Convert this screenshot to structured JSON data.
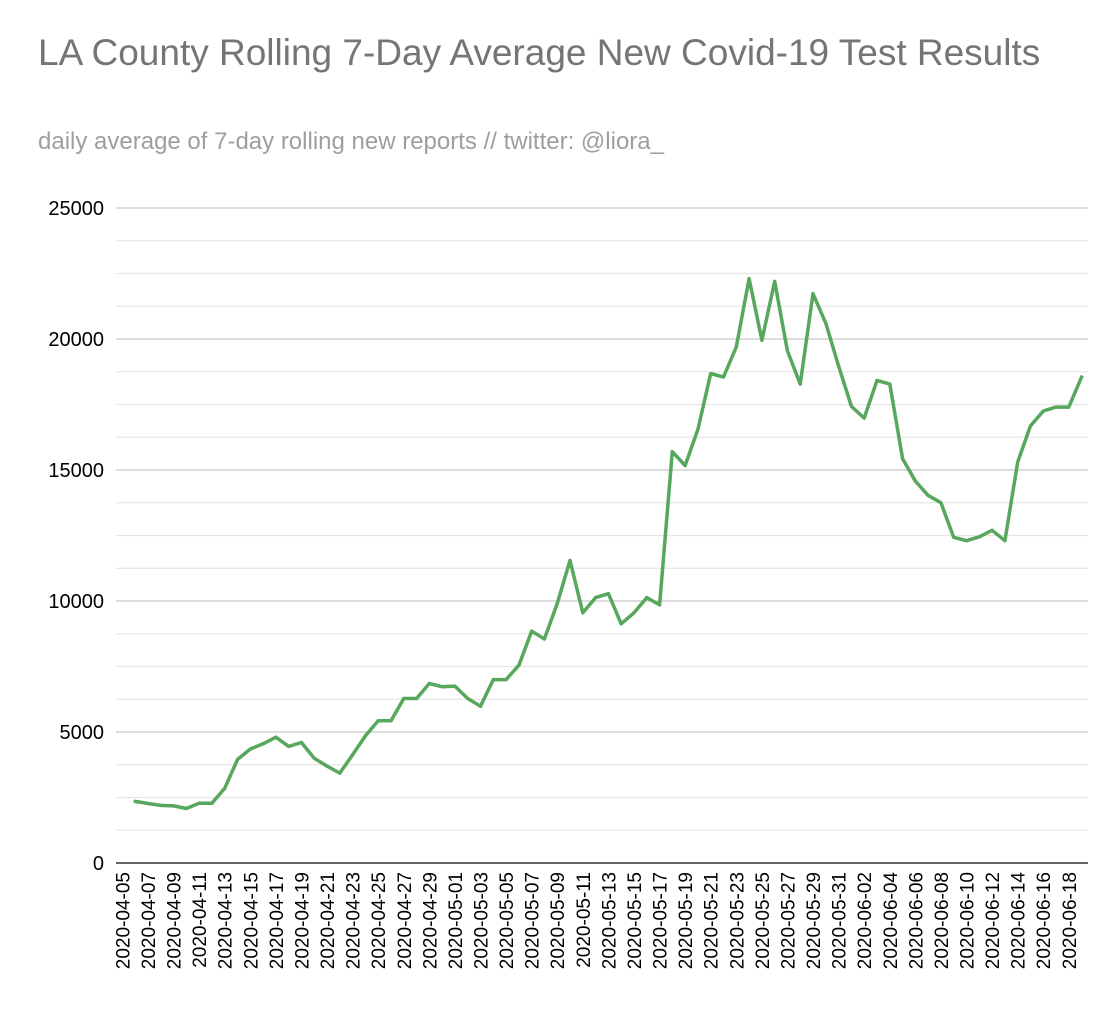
{
  "chart_data": {
    "type": "line",
    "title": "LA County Rolling 7-Day Average New Covid-19 Test Results",
    "subtitle": "daily average of 7-day rolling new reports // twitter: @liora_",
    "xlabel": "",
    "ylabel": "",
    "ylim": [
      0,
      25000
    ],
    "y_ticks": [
      "0",
      "5000",
      "10000",
      "15000",
      "20000",
      "25000"
    ],
    "y_minor_step": 1250,
    "grid": true,
    "legend": "none",
    "line_color": "#57a75c",
    "x_tick_labels": [
      "2020-04-05",
      "2020-04-07",
      "2020-04-09",
      "2020-04-11",
      "2020-04-13",
      "2020-04-15",
      "2020-04-17",
      "2020-04-19",
      "2020-04-21",
      "2020-04-23",
      "2020-04-25",
      "2020-04-27",
      "2020-04-29",
      "2020-05-01",
      "2020-05-03",
      "2020-05-05",
      "2020-05-07",
      "2020-05-09",
      "2020-05-11",
      "2020-05-13",
      "2020-05-15",
      "2020-05-17",
      "2020-05-19",
      "2020-05-21",
      "2020-05-23",
      "2020-05-25",
      "2020-05-27",
      "2020-05-29",
      "2020-05-31",
      "2020-06-02",
      "2020-06-04",
      "2020-06-06",
      "2020-06-08",
      "2020-06-10",
      "2020-06-12",
      "2020-06-14",
      "2020-06-16",
      "2020-06-18"
    ],
    "series": [
      {
        "x": [
          "2020-04-06",
          "2020-04-07",
          "2020-04-08",
          "2020-04-09",
          "2020-04-10",
          "2020-04-11",
          "2020-04-12",
          "2020-04-13",
          "2020-04-14",
          "2020-04-15",
          "2020-04-16",
          "2020-04-17",
          "2020-04-18",
          "2020-04-19",
          "2020-04-20",
          "2020-04-21",
          "2020-04-22",
          "2020-04-23",
          "2020-04-24",
          "2020-04-25",
          "2020-04-26",
          "2020-04-27",
          "2020-04-28",
          "2020-04-29",
          "2020-04-30",
          "2020-05-01",
          "2020-05-02",
          "2020-05-03",
          "2020-05-04",
          "2020-05-05",
          "2020-05-06",
          "2020-05-07",
          "2020-05-08",
          "2020-05-09",
          "2020-05-10",
          "2020-05-11",
          "2020-05-12",
          "2020-05-13",
          "2020-05-14",
          "2020-05-15",
          "2020-05-16",
          "2020-05-17",
          "2020-05-18",
          "2020-05-19",
          "2020-05-20",
          "2020-05-21",
          "2020-05-22",
          "2020-05-23",
          "2020-05-24",
          "2020-05-25",
          "2020-05-26",
          "2020-05-27",
          "2020-05-28",
          "2020-05-29",
          "2020-05-30",
          "2020-05-31",
          "2020-06-01",
          "2020-06-02",
          "2020-06-03",
          "2020-06-04",
          "2020-06-05",
          "2020-06-06",
          "2020-06-07",
          "2020-06-08",
          "2020-06-09",
          "2020-06-10",
          "2020-06-11",
          "2020-06-12",
          "2020-06-13",
          "2020-06-14",
          "2020-06-15",
          "2020-06-16",
          "2020-06-17",
          "2020-06-18",
          "2020-06-19"
        ],
        "values": [
          2350,
          2270,
          2200,
          2180,
          2080,
          2280,
          2280,
          2850,
          3950,
          4350,
          4550,
          4800,
          4450,
          4600,
          4000,
          3700,
          3430,
          4130,
          4850,
          5430,
          5430,
          6280,
          6280,
          6850,
          6730,
          6750,
          6280,
          5980,
          7000,
          7000,
          7550,
          8850,
          8550,
          9900,
          11550,
          9550,
          10130,
          10280,
          9130,
          9550,
          10130,
          9850,
          15700,
          15170,
          16550,
          18680,
          18550,
          19700,
          22300,
          19950,
          22200,
          19550,
          18280,
          21730,
          20600,
          18970,
          17430,
          16980,
          18420,
          18280,
          15430,
          14580,
          14030,
          13750,
          12430,
          12300,
          12450,
          12700,
          12300,
          15300,
          16680,
          17250,
          17400,
          17400,
          18550
        ]
      }
    ]
  }
}
